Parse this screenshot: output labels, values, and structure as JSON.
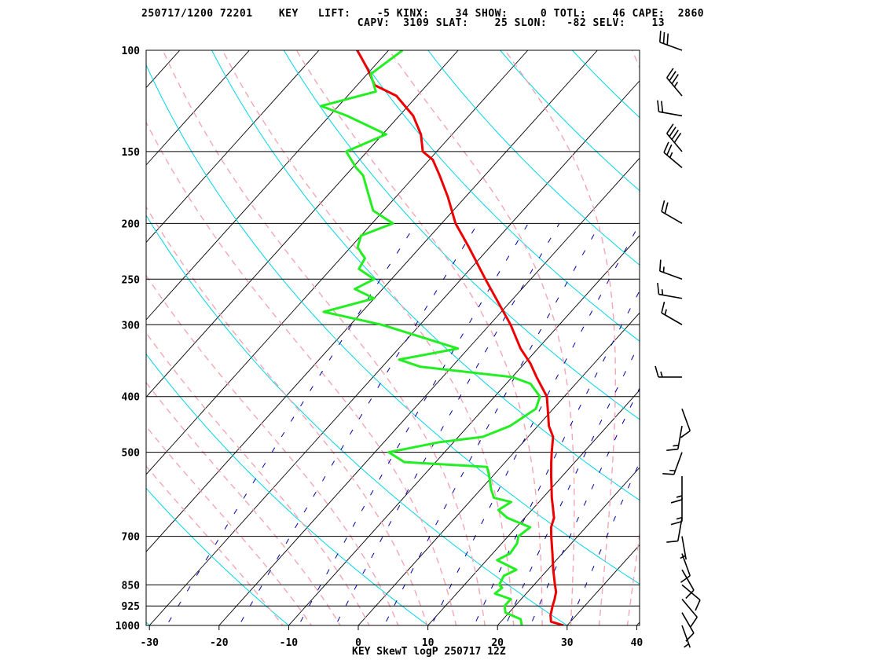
{
  "header": {
    "line1": "250717/1200 72201    KEY   LIFT:    -5 KINX:    34 SHOW:     0 TOTL:    46 CAPE:  2860",
    "line2": "                                 CAPV:  3109 SLAT:    25 SLON:   -82 SELV:    13"
  },
  "footer": "KEY SkewT logP 250717 12Z",
  "colors": {
    "temperature": "#ee0000",
    "dewpoint": "#22ee22",
    "isotherm": "#000000",
    "isobar": "#000000",
    "dry_adiabat": "#00d4e8",
    "moist_adiabat": "#f4a6b4",
    "mixing_ratio": "#0000aa",
    "wind_barb": "#000000"
  },
  "chart_data": {
    "type": "skewt",
    "title": "",
    "xlabel": "",
    "ylabel": "",
    "temp_ticks": [
      -30,
      -20,
      -10,
      0,
      10,
      20,
      30,
      40
    ],
    "temp_tick_labels": [
      "-30",
      "-20",
      "-10",
      "0",
      "10",
      "20",
      "30",
      "40"
    ],
    "pressure_levels": [
      100,
      150,
      200,
      250,
      300,
      400,
      500,
      700,
      850,
      925,
      1000
    ],
    "pressure_labels": [
      "100",
      "150",
      "200",
      "250",
      "300",
      "400",
      "500",
      "700",
      "850",
      "925",
      "1000"
    ],
    "pressure_range": [
      100,
      1000
    ],
    "temperature_profile": [
      {
        "p": 1000,
        "t": 29.5
      },
      {
        "p": 985,
        "t": 27.2
      },
      {
        "p": 960,
        "t": 26.3
      },
      {
        "p": 925,
        "t": 25.4
      },
      {
        "p": 900,
        "t": 24.8
      },
      {
        "p": 875,
        "t": 24.1
      },
      {
        "p": 850,
        "t": 23.0
      },
      {
        "p": 800,
        "t": 20.8
      },
      {
        "p": 750,
        "t": 18.6
      },
      {
        "p": 700,
        "t": 16.2
      },
      {
        "p": 675,
        "t": 15.0
      },
      {
        "p": 650,
        "t": 14.2
      },
      {
        "p": 620,
        "t": 12.5
      },
      {
        "p": 600,
        "t": 11.3
      },
      {
        "p": 570,
        "t": 9.6
      },
      {
        "p": 550,
        "t": 8.4
      },
      {
        "p": 520,
        "t": 6.6
      },
      {
        "p": 500,
        "t": 5.4
      },
      {
        "p": 470,
        "t": 3.6
      },
      {
        "p": 450,
        "t": 1.6
      },
      {
        "p": 420,
        "t": -0.8
      },
      {
        "p": 400,
        "t": -2.5
      },
      {
        "p": 370,
        "t": -6.5
      },
      {
        "p": 350,
        "t": -9.2
      },
      {
        "p": 330,
        "t": -12.5
      },
      {
        "p": 300,
        "t": -17.0
      },
      {
        "p": 270,
        "t": -22.5
      },
      {
        "p": 250,
        "t": -26.5
      },
      {
        "p": 220,
        "t": -33.0
      },
      {
        "p": 200,
        "t": -38.0
      },
      {
        "p": 180,
        "t": -42.5
      },
      {
        "p": 165,
        "t": -46.5
      },
      {
        "p": 155,
        "t": -49.5
      },
      {
        "p": 150,
        "t": -52.0
      },
      {
        "p": 140,
        "t": -54.5
      },
      {
        "p": 130,
        "t": -58.0
      },
      {
        "p": 120,
        "t": -63.0
      },
      {
        "p": 115,
        "t": -67.5
      },
      {
        "p": 108,
        "t": -70.5
      },
      {
        "p": 100,
        "t": -74.5
      }
    ],
    "dewpoint_profile": [
      {
        "p": 1000,
        "td": 23.5
      },
      {
        "p": 975,
        "td": 22.5
      },
      {
        "p": 950,
        "td": 19.5
      },
      {
        "p": 925,
        "td": 18.5
      },
      {
        "p": 900,
        "td": 18.5
      },
      {
        "p": 880,
        "td": 15.5
      },
      {
        "p": 860,
        "td": 15.8
      },
      {
        "p": 850,
        "td": 15.0
      },
      {
        "p": 820,
        "td": 14.5
      },
      {
        "p": 800,
        "td": 15.5
      },
      {
        "p": 770,
        "td": 11.5
      },
      {
        "p": 750,
        "td": 12.5
      },
      {
        "p": 720,
        "td": 12.2
      },
      {
        "p": 700,
        "td": 11.5
      },
      {
        "p": 675,
        "td": 12.0
      },
      {
        "p": 650,
        "td": 7.5
      },
      {
        "p": 630,
        "td": 5.2
      },
      {
        "p": 610,
        "td": 6.0
      },
      {
        "p": 600,
        "td": 3.0
      },
      {
        "p": 580,
        "td": 1.5
      },
      {
        "p": 550,
        "td": -0.5
      },
      {
        "p": 530,
        "td": -2.0
      },
      {
        "p": 520,
        "td": -14.5
      },
      {
        "p": 500,
        "td": -18.0
      },
      {
        "p": 480,
        "td": -12.0
      },
      {
        "p": 470,
        "td": -6.5
      },
      {
        "p": 450,
        "td": -4.0
      },
      {
        "p": 420,
        "td": -2.5
      },
      {
        "p": 400,
        "td": -3.5
      },
      {
        "p": 380,
        "td": -6.5
      },
      {
        "p": 370,
        "td": -10.0
      },
      {
        "p": 355,
        "td": -24.5
      },
      {
        "p": 345,
        "td": -28.5
      },
      {
        "p": 330,
        "td": -21.5
      },
      {
        "p": 320,
        "td": -26.0
      },
      {
        "p": 300,
        "td": -35.5
      },
      {
        "p": 285,
        "td": -45.5
      },
      {
        "p": 270,
        "td": -40.0
      },
      {
        "p": 260,
        "td": -44.0
      },
      {
        "p": 250,
        "td": -42.5
      },
      {
        "p": 240,
        "td": -46.0
      },
      {
        "p": 230,
        "td": -46.5
      },
      {
        "p": 220,
        "td": -49.0
      },
      {
        "p": 210,
        "td": -50.0
      },
      {
        "p": 200,
        "td": -47.0
      },
      {
        "p": 190,
        "td": -51.5
      },
      {
        "p": 175,
        "td": -55.0
      },
      {
        "p": 165,
        "td": -57.5
      },
      {
        "p": 160,
        "td": -59.5
      },
      {
        "p": 150,
        "td": -63.0
      },
      {
        "p": 140,
        "td": -59.5
      },
      {
        "p": 130,
        "td": -67.5
      },
      {
        "p": 125,
        "td": -72.5
      },
      {
        "p": 118,
        "td": -66.5
      },
      {
        "p": 110,
        "td": -69.5
      },
      {
        "p": 100,
        "td": -68.0
      }
    ],
    "wind_barbs": [
      {
        "p": 1000,
        "dir": 160,
        "spd": 5
      },
      {
        "p": 950,
        "dir": 150,
        "spd": 10
      },
      {
        "p": 900,
        "dir": 140,
        "spd": 10
      },
      {
        "p": 850,
        "dir": 130,
        "spd": 10
      },
      {
        "p": 800,
        "dir": 150,
        "spd": 10
      },
      {
        "p": 750,
        "dir": 160,
        "spd": 10
      },
      {
        "p": 700,
        "dir": 170,
        "spd": 5
      },
      {
        "p": 650,
        "dir": 190,
        "spd": 10
      },
      {
        "p": 600,
        "dir": 180,
        "spd": 15
      },
      {
        "p": 550,
        "dir": 180,
        "spd": 15
      },
      {
        "p": 500,
        "dir": 200,
        "spd": 15
      },
      {
        "p": 450,
        "dir": 190,
        "spd": 15
      },
      {
        "p": 420,
        "dir": 160,
        "spd": 10
      },
      {
        "p": 370,
        "dir": 270,
        "spd": 15
      },
      {
        "p": 300,
        "dir": 300,
        "spd": 15
      },
      {
        "p": 270,
        "dir": 280,
        "spd": 15
      },
      {
        "p": 250,
        "dir": 290,
        "spd": 15
      },
      {
        "p": 200,
        "dir": 300,
        "spd": 20
      },
      {
        "p": 160,
        "dir": 310,
        "spd": 25
      },
      {
        "p": 150,
        "dir": 320,
        "spd": 40
      },
      {
        "p": 130,
        "dir": 280,
        "spd": 20
      },
      {
        "p": 120,
        "dir": 320,
        "spd": 35
      },
      {
        "p": 100,
        "dir": 290,
        "spd": 30
      }
    ]
  }
}
